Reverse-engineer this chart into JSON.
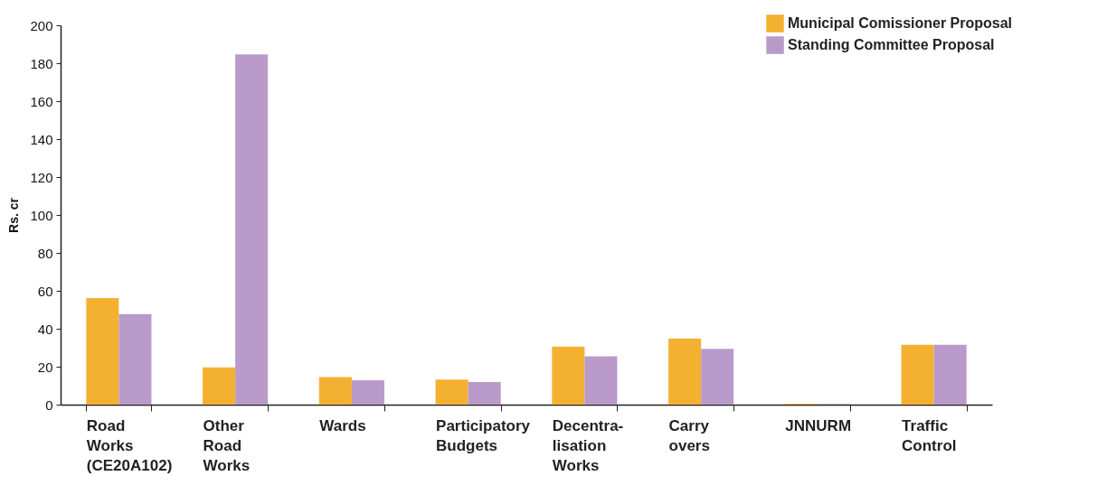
{
  "chart_data": {
    "type": "bar",
    "ylabel": "Rs. cr",
    "categories": [
      "Road Works (CE20A102)",
      "Other Road Works",
      "Wards",
      "Participatory Budgets",
      "Decentra-lisation Works",
      "Carry overs",
      "JNNURM",
      "Traffic Control"
    ],
    "series": [
      {
        "name": "Municipal Comissioner Proposal",
        "color": "#f4b131",
        "values": [
          56.2,
          19.6,
          14.5,
          13.2,
          30.6,
          34.9,
          0.5,
          31.5
        ]
      },
      {
        "name": "Standing Committee Proposal",
        "color": "#b99aca",
        "values": [
          47.7,
          184.7,
          12.8,
          11.9,
          25.5,
          29.4,
          0.3,
          31.5
        ]
      }
    ],
    "ylim": [
      0,
      200
    ],
    "yticks": [
      0,
      20,
      40,
      60,
      80,
      100,
      120,
      140,
      160,
      180,
      200
    ],
    "grid": false,
    "legend": "top right"
  }
}
